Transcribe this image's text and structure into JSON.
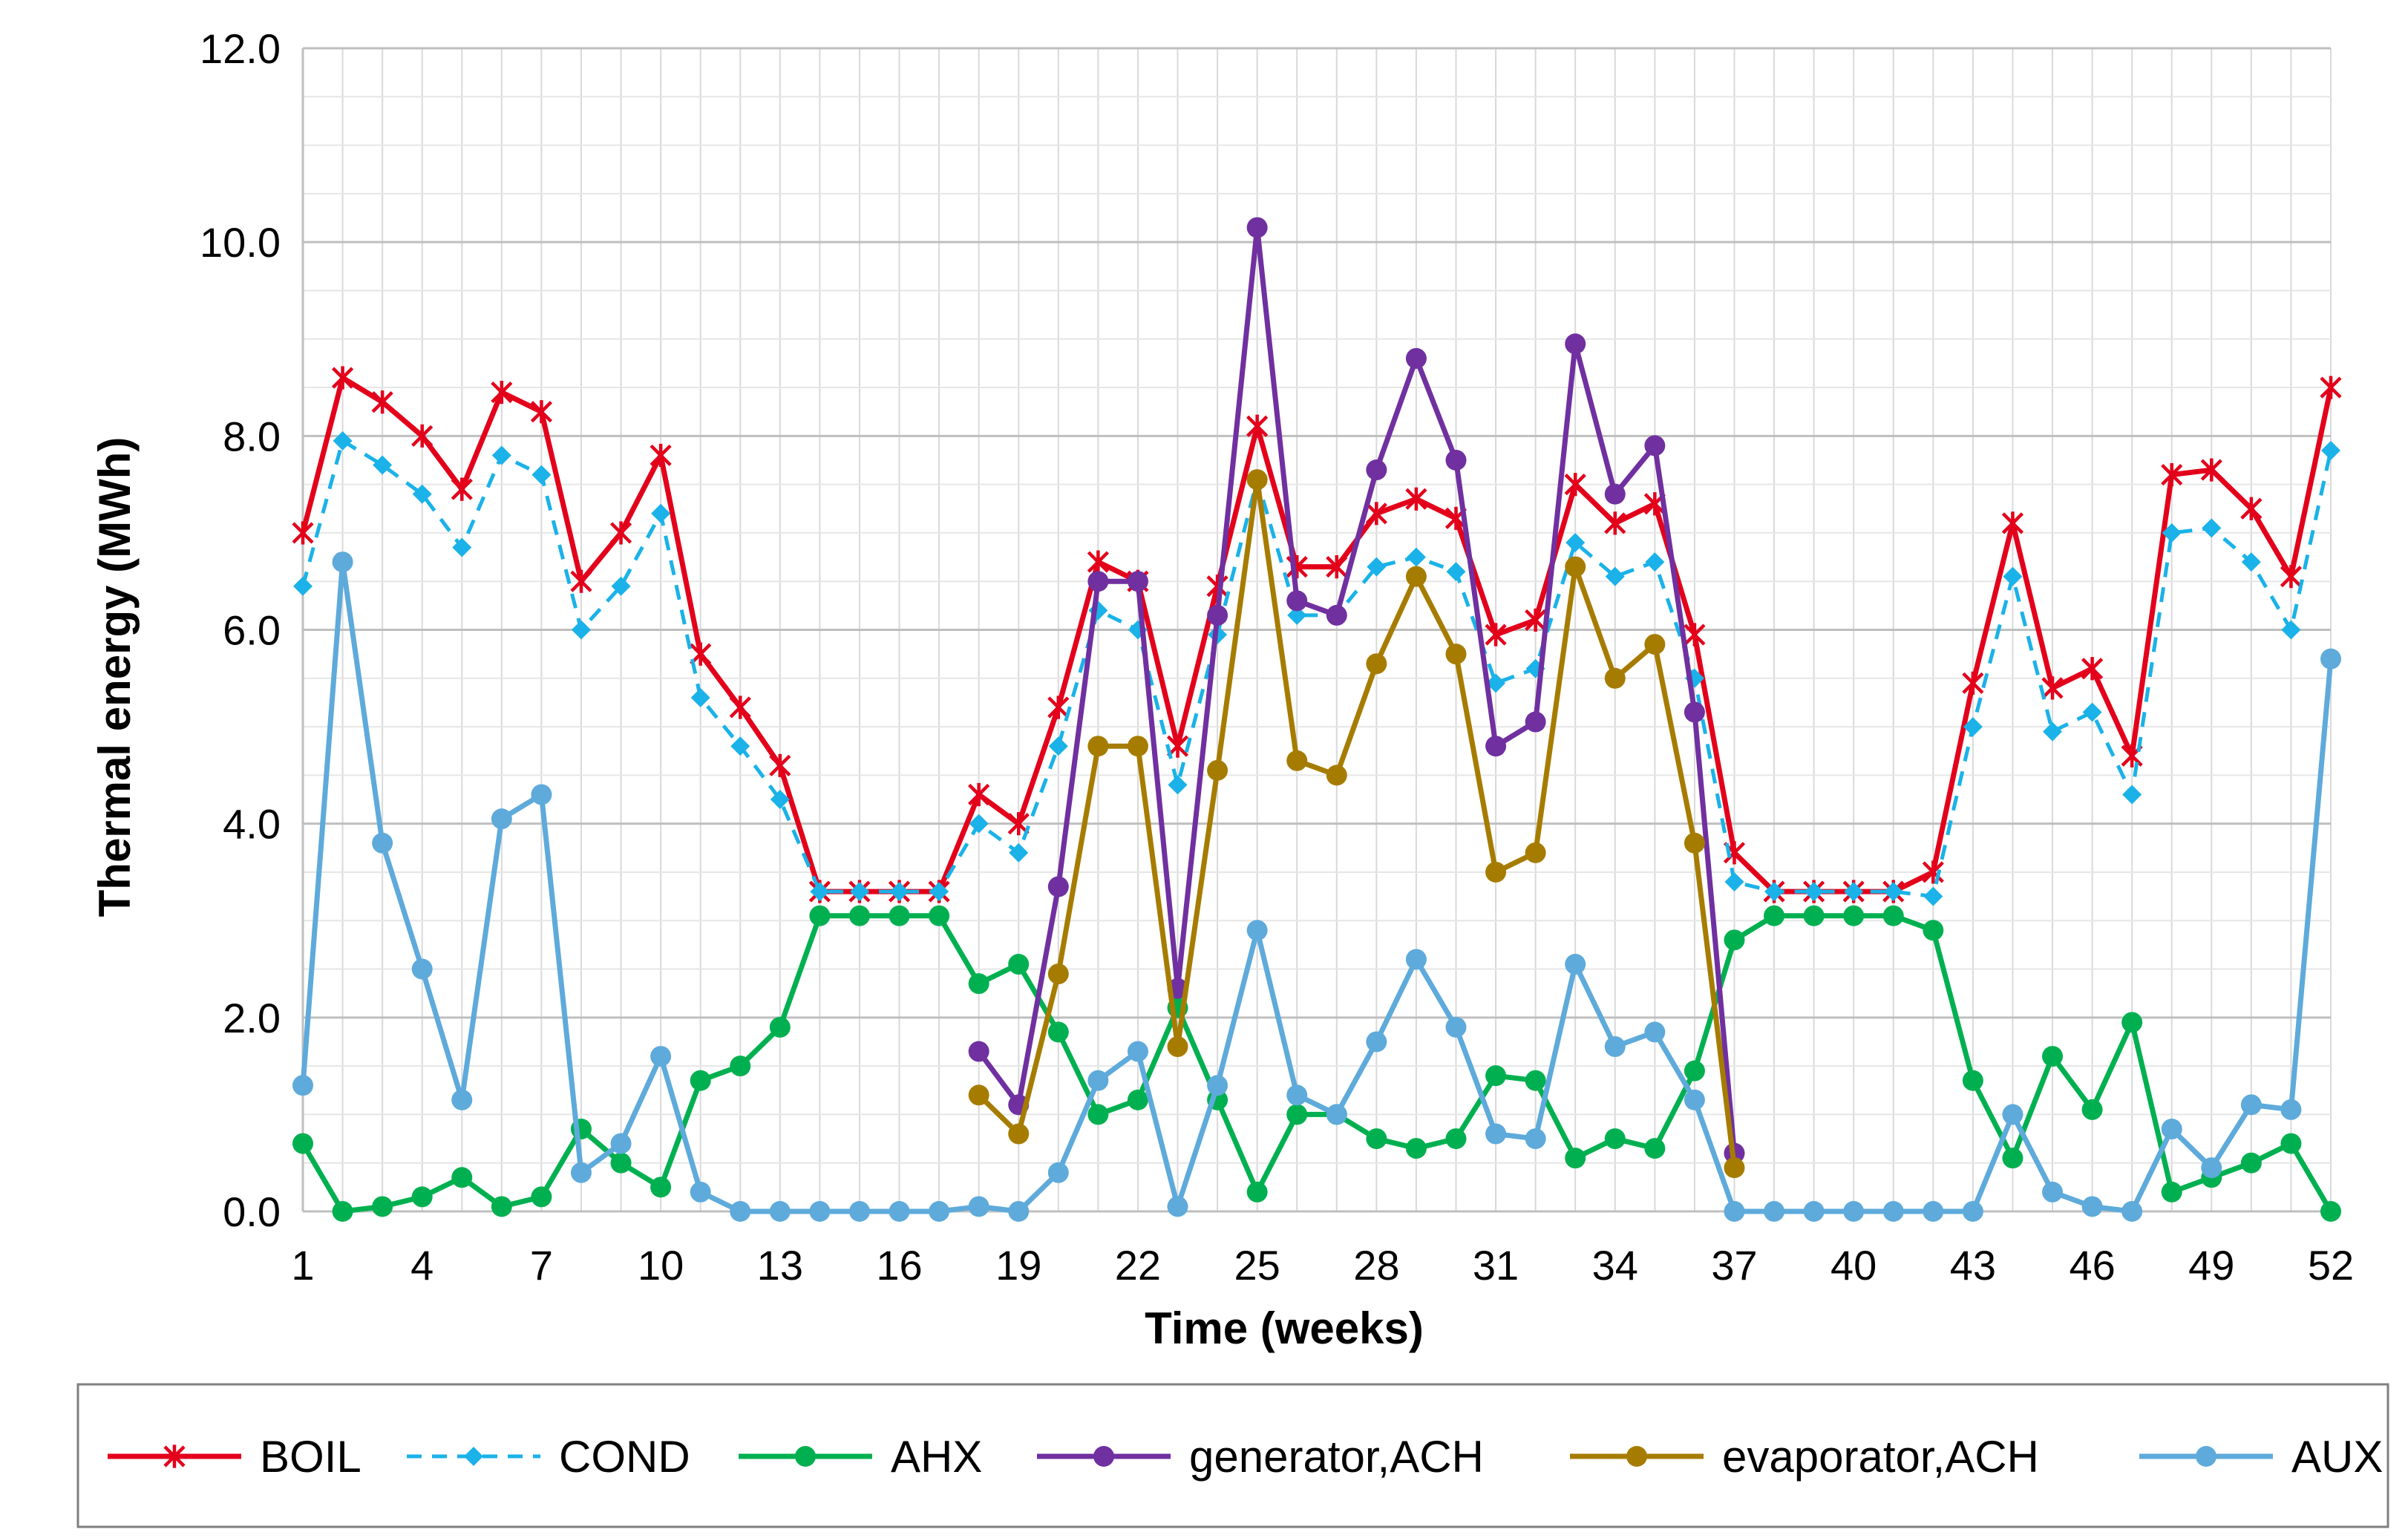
{
  "chart_data": {
    "type": "line",
    "title": "",
    "xlabel": "Time (weeks)",
    "ylabel": "Thermal energy (MWh)",
    "xlim": [
      1,
      52
    ],
    "ylim": [
      0,
      12
    ],
    "grid": true,
    "legend_position": "bottom",
    "x": [
      1,
      2,
      3,
      4,
      5,
      6,
      7,
      8,
      9,
      10,
      11,
      12,
      13,
      14,
      15,
      16,
      17,
      18,
      19,
      20,
      21,
      22,
      23,
      24,
      25,
      26,
      27,
      28,
      29,
      30,
      31,
      32,
      33,
      34,
      35,
      36,
      37,
      38,
      39,
      40,
      41,
      42,
      43,
      44,
      45,
      46,
      47,
      48,
      49,
      50,
      51,
      52
    ],
    "x_tick_labels": [
      "1",
      "4",
      "7",
      "10",
      "13",
      "16",
      "19",
      "22",
      "25",
      "28",
      "31",
      "34",
      "37",
      "40",
      "43",
      "46",
      "49",
      "52"
    ],
    "y_tick_labels": [
      "0.0",
      "2.0",
      "4.0",
      "6.0",
      "8.0",
      "10.0",
      "12.0"
    ],
    "series": [
      {
        "name": "BOIL",
        "color": "#e3001b",
        "marker": "star",
        "dash": "solid",
        "values": [
          7.0,
          8.6,
          8.35,
          8.0,
          7.45,
          8.45,
          8.25,
          6.5,
          7.0,
          7.8,
          5.75,
          5.2,
          4.6,
          3.3,
          3.3,
          3.3,
          3.3,
          4.3,
          4.0,
          5.2,
          6.7,
          6.5,
          4.8,
          6.45,
          8.1,
          6.65,
          6.65,
          7.2,
          7.35,
          7.15,
          5.95,
          6.1,
          7.5,
          7.1,
          7.3,
          5.95,
          3.7,
          3.3,
          3.3,
          3.3,
          3.3,
          3.5,
          5.45,
          7.1,
          5.4,
          5.6,
          4.7,
          7.6,
          7.65,
          7.25,
          6.55,
          8.5
        ]
      },
      {
        "name": "COND",
        "color": "#1ab2e8",
        "marker": "diamond",
        "dash": "dashed",
        "values": [
          6.45,
          7.95,
          7.7,
          7.4,
          6.85,
          7.8,
          7.6,
          6.0,
          6.45,
          7.2,
          5.3,
          4.8,
          4.25,
          3.3,
          3.3,
          3.3,
          3.3,
          4.0,
          3.7,
          4.8,
          6.2,
          6.0,
          4.4,
          5.95,
          7.55,
          6.15,
          6.15,
          6.65,
          6.75,
          6.6,
          5.45,
          5.6,
          6.9,
          6.55,
          6.7,
          5.5,
          3.4,
          3.3,
          3.3,
          3.3,
          3.3,
          3.25,
          5.0,
          6.55,
          4.95,
          5.15,
          4.3,
          7.0,
          7.05,
          6.7,
          6.0,
          7.85
        ]
      },
      {
        "name": "AHX",
        "color": "#00b050",
        "marker": "circle",
        "dash": "solid",
        "values": [
          0.7,
          0.0,
          0.05,
          0.15,
          0.35,
          0.05,
          0.15,
          0.85,
          0.5,
          0.25,
          1.35,
          1.5,
          1.9,
          3.05,
          3.05,
          3.05,
          3.05,
          2.35,
          2.55,
          1.85,
          1.0,
          1.15,
          2.1,
          1.15,
          0.2,
          1.0,
          1.0,
          0.75,
          0.65,
          0.75,
          1.4,
          1.35,
          0.55,
          0.75,
          0.65,
          1.45,
          2.8,
          3.05,
          3.05,
          3.05,
          3.05,
          2.9,
          1.35,
          0.55,
          1.6,
          1.05,
          1.95,
          0.2,
          0.35,
          0.5,
          0.7,
          0.0
        ]
      },
      {
        "name": "generator,ACH",
        "color": "#7030a0",
        "marker": "circle",
        "dash": "solid",
        "values": [
          null,
          null,
          null,
          null,
          null,
          null,
          null,
          null,
          null,
          null,
          null,
          null,
          null,
          null,
          null,
          null,
          null,
          1.65,
          1.1,
          3.35,
          6.5,
          6.5,
          2.3,
          6.15,
          10.15,
          6.3,
          6.15,
          7.65,
          8.8,
          7.75,
          4.8,
          5.05,
          8.95,
          7.4,
          7.9,
          5.15,
          0.6,
          null,
          null,
          null,
          null,
          null,
          null,
          null,
          null,
          null,
          null,
          null,
          null,
          null,
          null,
          null
        ]
      },
      {
        "name": "evaporator,ACH",
        "color": "#a67c00",
        "marker": "circle",
        "dash": "solid",
        "values": [
          null,
          null,
          null,
          null,
          null,
          null,
          null,
          null,
          null,
          null,
          null,
          null,
          null,
          null,
          null,
          null,
          null,
          1.2,
          0.8,
          2.45,
          4.8,
          4.8,
          1.7,
          4.55,
          7.55,
          4.65,
          4.5,
          5.65,
          6.55,
          5.75,
          3.5,
          3.7,
          6.65,
          5.5,
          5.85,
          3.8,
          0.45,
          null,
          null,
          null,
          null,
          null,
          null,
          null,
          null,
          null,
          null,
          null,
          null,
          null,
          null,
          null
        ]
      },
      {
        "name": "AUX",
        "color": "#5eaadb",
        "marker": "circle",
        "dash": "solid",
        "values": [
          1.3,
          6.7,
          3.8,
          2.5,
          1.15,
          4.05,
          4.3,
          0.4,
          0.7,
          1.6,
          0.2,
          0.0,
          0.0,
          0.0,
          0.0,
          0.0,
          0.0,
          0.05,
          0.0,
          0.4,
          1.35,
          1.65,
          0.05,
          1.3,
          2.9,
          1.2,
          1.0,
          1.75,
          2.6,
          1.9,
          0.8,
          0.75,
          2.55,
          1.7,
          1.85,
          1.15,
          0.0,
          0.0,
          0.0,
          0.0,
          0.0,
          0.0,
          0.0,
          1.0,
          0.2,
          0.05,
          0.0,
          0.85,
          0.45,
          1.1,
          1.05,
          5.7
        ]
      }
    ]
  }
}
